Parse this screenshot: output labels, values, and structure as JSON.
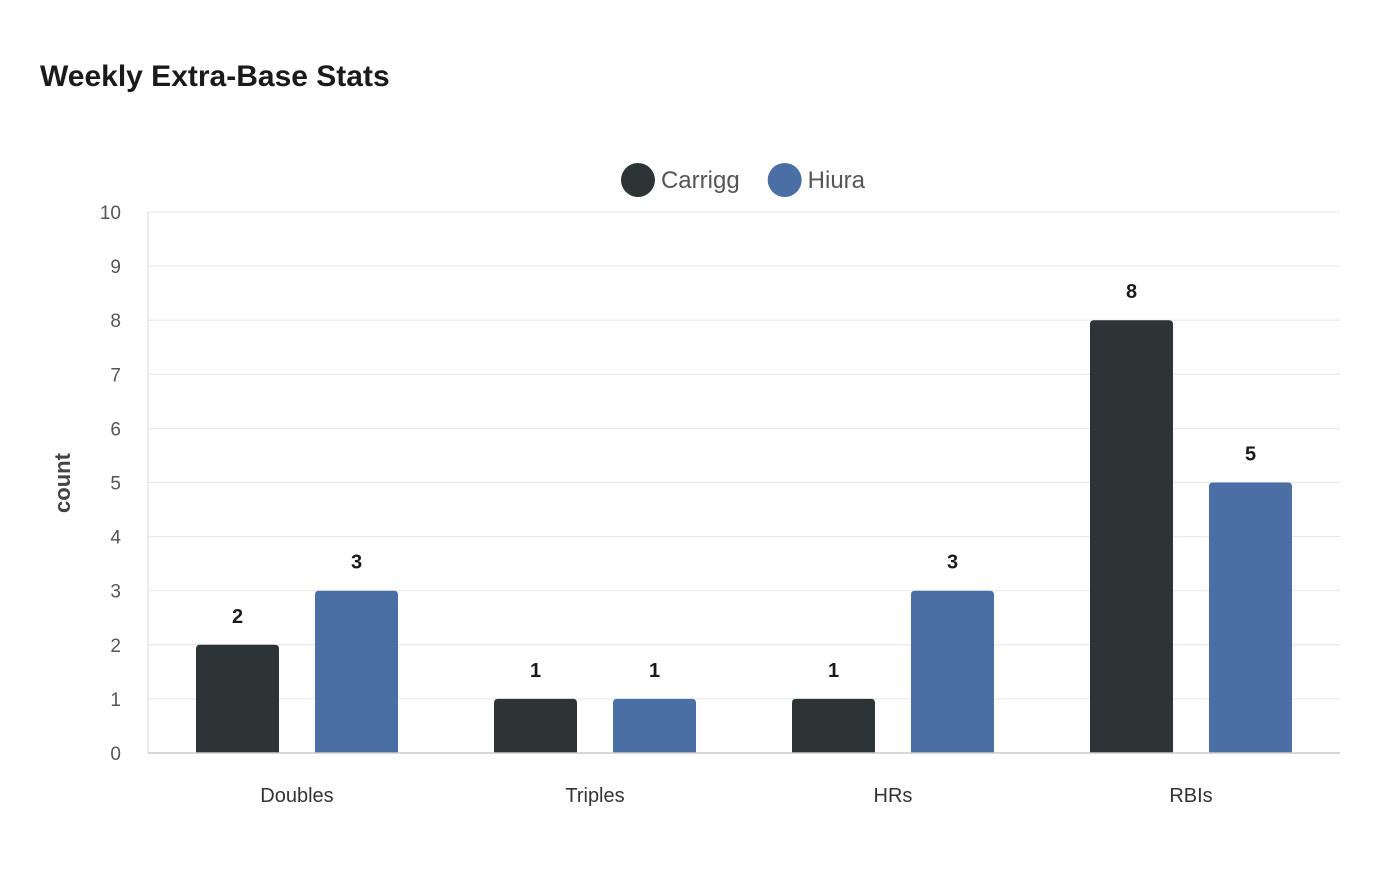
{
  "chart_data": {
    "type": "bar",
    "title": "Weekly Extra-Base Stats",
    "categories": [
      "Doubles",
      "Triples",
      "HRs",
      "RBIs"
    ],
    "series": [
      {
        "name": "Carrigg",
        "values": [
          2,
          1,
          1,
          8
        ],
        "color": "#2d3436"
      },
      {
        "name": "Hiura",
        "values": [
          3,
          1,
          3,
          5
        ],
        "color": "#4a6fa5"
      }
    ],
    "xlabel": "",
    "ylabel": "count",
    "ylim": [
      0,
      10
    ],
    "yticks": [
      0,
      1,
      2,
      3,
      4,
      5,
      6,
      7,
      8,
      9,
      10
    ],
    "grid": true,
    "legend_position": "top-center",
    "data_labels": true
  }
}
